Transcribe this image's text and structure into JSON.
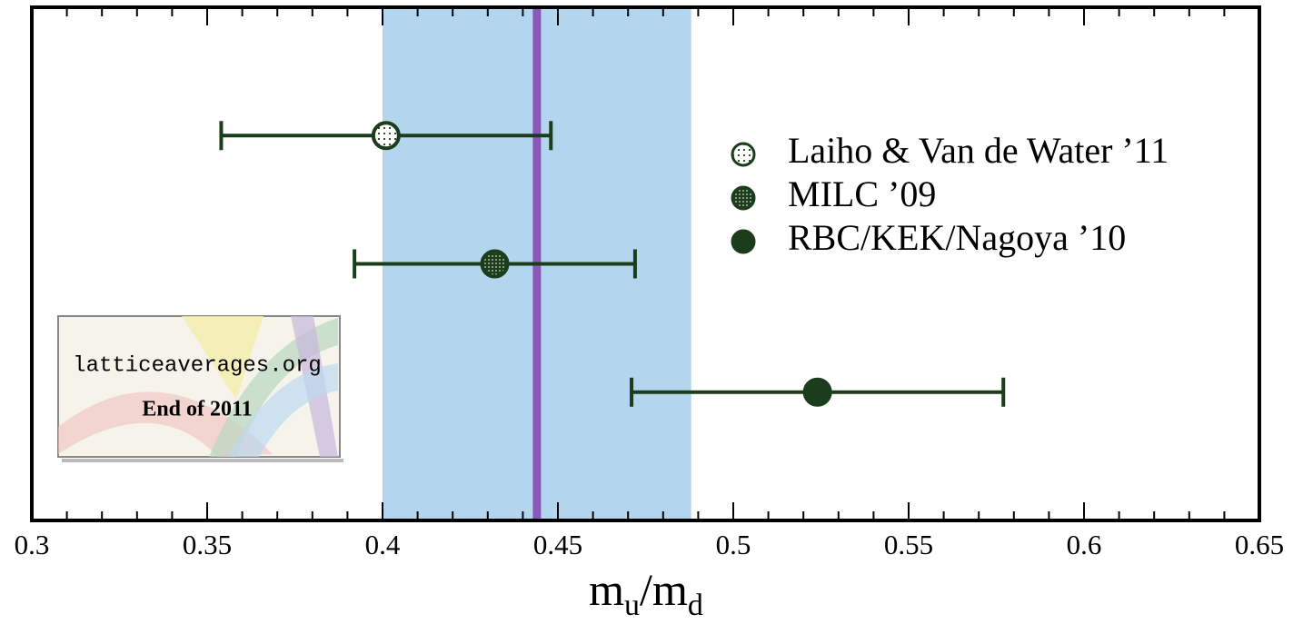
{
  "chart_data": {
    "type": "errorbar",
    "xlabel": [
      "m",
      "u",
      "/m",
      "d"
    ],
    "xlim": [
      0.3,
      0.65
    ],
    "xticks": [
      0.3,
      0.35,
      0.4,
      0.45,
      0.5,
      0.55,
      0.6,
      0.65
    ],
    "band": {
      "low": 0.4,
      "high": 0.488,
      "color": "#b3d5ee"
    },
    "average": {
      "value": 0.444,
      "color": "#8a58b8"
    },
    "series": [
      {
        "name": "Laiho & Van de Water ’11",
        "color": "#1b3d1b",
        "marker": "open-dotted",
        "values": [
          0.401
        ],
        "lower": [
          0.354
        ],
        "upper": [
          0.448
        ]
      },
      {
        "name": "MILC ’09",
        "color": "#1b3d1b",
        "marker": "dense-dotted",
        "values": [
          0.432
        ],
        "lower": [
          0.392
        ],
        "upper": [
          0.472
        ]
      },
      {
        "name": "RBC/KEK/Nagoya ’10",
        "color": "#1b3d1b",
        "marker": "filled",
        "values": [
          0.524
        ],
        "lower": [
          0.471
        ],
        "upper": [
          0.577
        ]
      }
    ],
    "inset": {
      "site": "latticeaverages.org",
      "caption": "End of 2011"
    }
  }
}
